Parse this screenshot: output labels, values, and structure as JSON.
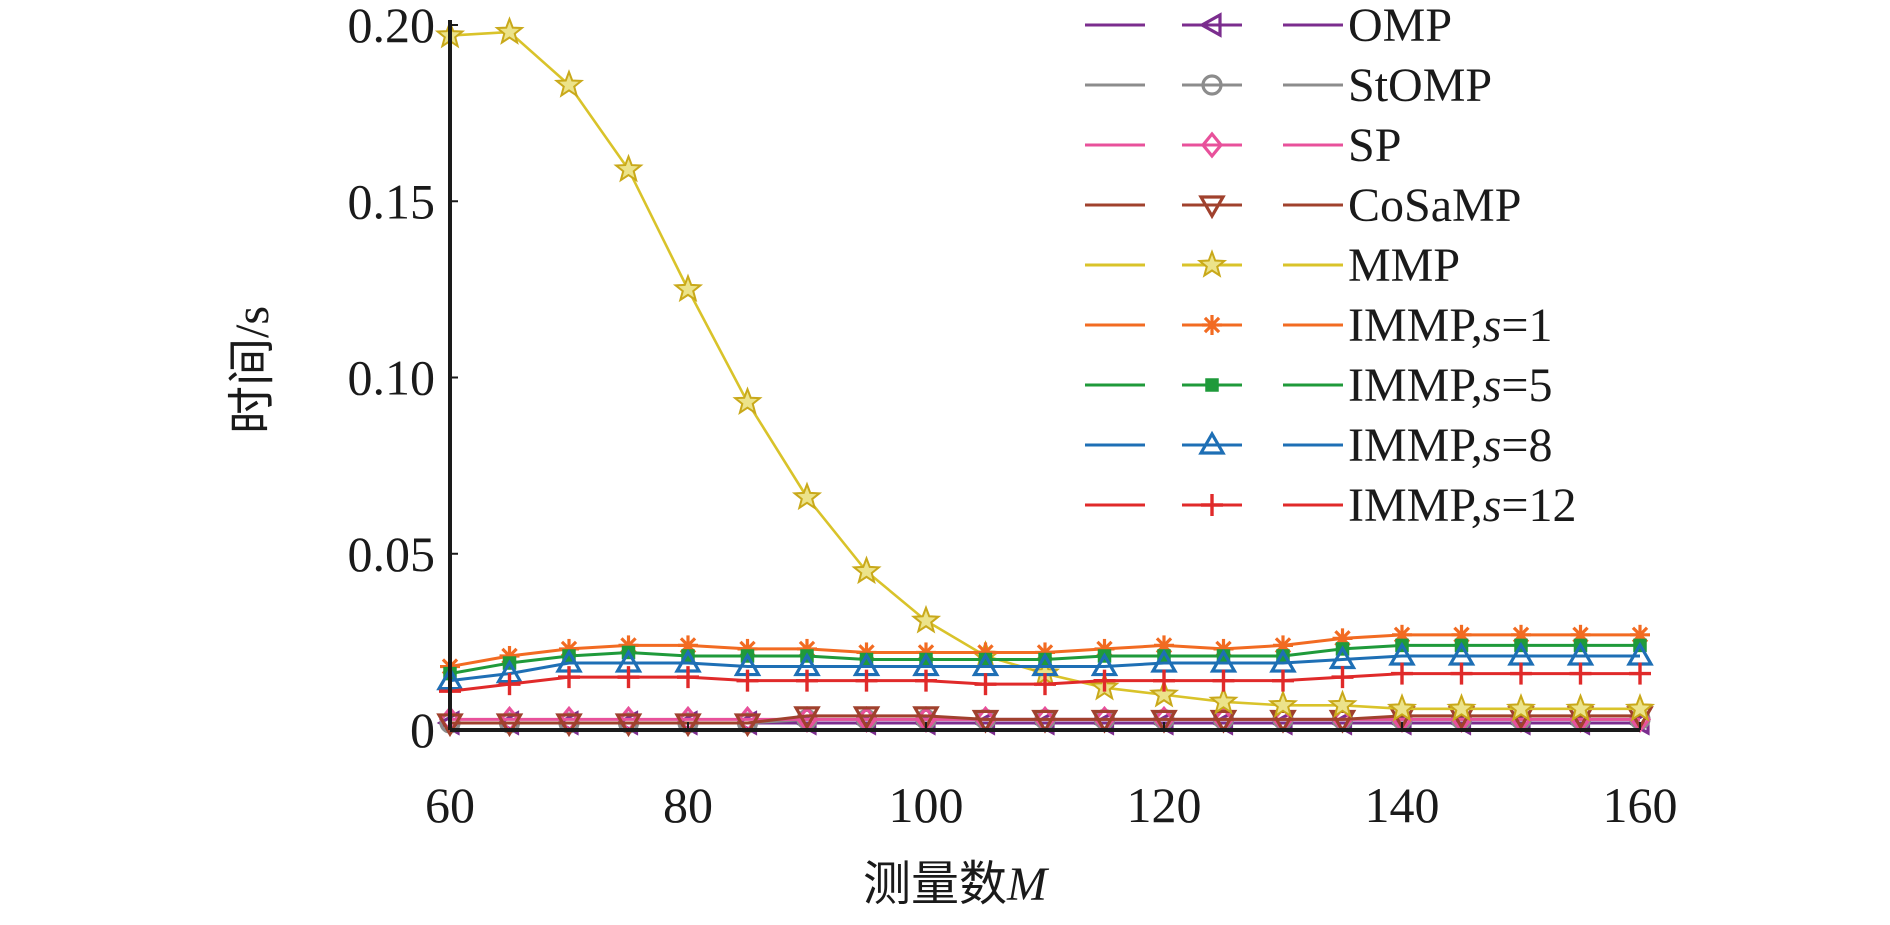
{
  "chart_data": {
    "type": "line",
    "title": "",
    "xlabel": "测量数M",
    "ylabel": "时间/s",
    "xlim": [
      60,
      160
    ],
    "ylim": [
      0,
      0.2
    ],
    "x_ticks": [
      60,
      80,
      100,
      120,
      140,
      160
    ],
    "y_ticks": [
      0,
      0.05,
      0.1,
      0.15,
      0.2
    ],
    "x_tick_labels": [
      "60",
      "80",
      "100",
      "120",
      "140",
      "160"
    ],
    "y_tick_labels": [
      "0",
      "0.05",
      "0.10",
      "0.15",
      "0.20"
    ],
    "grid": false,
    "legend_position": "top-right",
    "x": [
      60,
      65,
      70,
      75,
      80,
      85,
      90,
      95,
      100,
      105,
      110,
      115,
      120,
      125,
      130,
      135,
      140,
      145,
      150,
      155,
      160
    ],
    "series": [
      {
        "name": "OMP",
        "marker": "triangle-left",
        "color": "#7b2d8e",
        "values": [
          0.002,
          0.002,
          0.002,
          0.002,
          0.002,
          0.002,
          0.002,
          0.002,
          0.002,
          0.002,
          0.002,
          0.002,
          0.002,
          0.002,
          0.002,
          0.002,
          0.002,
          0.002,
          0.002,
          0.002,
          0.002
        ]
      },
      {
        "name": "StOMP",
        "marker": "circle",
        "color": "#8c8c8c",
        "values": [
          0.002,
          0.002,
          0.002,
          0.002,
          0.002,
          0.002,
          0.003,
          0.003,
          0.003,
          0.003,
          0.003,
          0.003,
          0.003,
          0.003,
          0.003,
          0.003,
          0.003,
          0.003,
          0.003,
          0.003,
          0.003
        ]
      },
      {
        "name": "SP",
        "marker": "diamond",
        "color": "#e8519b",
        "values": [
          0.003,
          0.003,
          0.003,
          0.003,
          0.003,
          0.003,
          0.003,
          0.003,
          0.003,
          0.003,
          0.003,
          0.003,
          0.003,
          0.003,
          0.003,
          0.003,
          0.003,
          0.003,
          0.003,
          0.003,
          0.003
        ]
      },
      {
        "name": "CoSaMP",
        "marker": "triangle-down",
        "color": "#a0412d",
        "values": [
          0.002,
          0.002,
          0.002,
          0.002,
          0.002,
          0.002,
          0.004,
          0.004,
          0.004,
          0.003,
          0.003,
          0.003,
          0.003,
          0.003,
          0.003,
          0.003,
          0.004,
          0.004,
          0.004,
          0.004,
          0.004
        ]
      },
      {
        "name": "MMP",
        "marker": "star",
        "color": "#d9c32a",
        "values": [
          0.197,
          0.198,
          0.183,
          0.159,
          0.125,
          0.093,
          0.066,
          0.045,
          0.031,
          0.021,
          0.016,
          0.012,
          0.01,
          0.008,
          0.007,
          0.007,
          0.006,
          0.006,
          0.006,
          0.006,
          0.006
        ]
      },
      {
        "name": "IMMP,s=1",
        "marker": "asterisk",
        "color": "#f26b22",
        "values": [
          0.018,
          0.021,
          0.023,
          0.024,
          0.024,
          0.023,
          0.023,
          0.022,
          0.022,
          0.022,
          0.022,
          0.023,
          0.024,
          0.023,
          0.024,
          0.026,
          0.027,
          0.027,
          0.027,
          0.027,
          0.027
        ]
      },
      {
        "name": "IMMP,s=5",
        "marker": "square",
        "color": "#1f9a3a",
        "values": [
          0.016,
          0.019,
          0.021,
          0.022,
          0.021,
          0.021,
          0.021,
          0.02,
          0.02,
          0.02,
          0.02,
          0.021,
          0.021,
          0.021,
          0.021,
          0.023,
          0.024,
          0.024,
          0.024,
          0.024,
          0.024
        ]
      },
      {
        "name": "IMMP,s=8",
        "marker": "triangle-up",
        "color": "#1e6fb5",
        "values": [
          0.014,
          0.016,
          0.019,
          0.019,
          0.019,
          0.018,
          0.018,
          0.018,
          0.018,
          0.018,
          0.018,
          0.018,
          0.019,
          0.019,
          0.019,
          0.02,
          0.021,
          0.021,
          0.021,
          0.021,
          0.021
        ]
      },
      {
        "name": "IMMP,s=12",
        "marker": "plus",
        "color": "#e02a2a",
        "values": [
          0.011,
          0.013,
          0.015,
          0.015,
          0.015,
          0.014,
          0.014,
          0.014,
          0.014,
          0.013,
          0.013,
          0.014,
          0.014,
          0.014,
          0.014,
          0.015,
          0.016,
          0.016,
          0.016,
          0.016,
          0.016
        ]
      }
    ]
  },
  "legend_labels": [
    {
      "prefix": "OMP",
      "italic": "",
      "suffix": ""
    },
    {
      "prefix": "StOMP",
      "italic": "",
      "suffix": ""
    },
    {
      "prefix": "SP",
      "italic": "",
      "suffix": ""
    },
    {
      "prefix": "CoSaMP",
      "italic": "",
      "suffix": ""
    },
    {
      "prefix": "MMP",
      "italic": "",
      "suffix": ""
    },
    {
      "prefix": "IMMP,",
      "italic": "s",
      "suffix": "=1"
    },
    {
      "prefix": "IMMP,",
      "italic": "s",
      "suffix": "=5"
    },
    {
      "prefix": "IMMP,",
      "italic": "s",
      "suffix": "=8"
    },
    {
      "prefix": "IMMP,",
      "italic": "s",
      "suffix": "=12"
    }
  ],
  "axis_titles": {
    "x_prefix": "测量数",
    "x_italic": "M",
    "y": "时间/s"
  }
}
